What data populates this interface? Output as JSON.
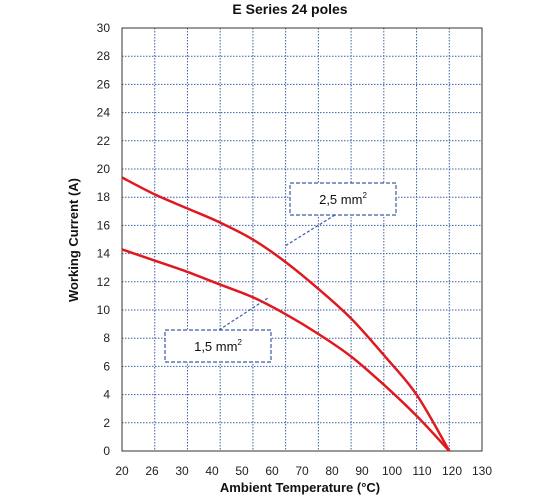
{
  "chart_data": {
    "type": "line",
    "title": "E Series 24 poles",
    "xlabel": "Ambient Temperature (°C)",
    "ylabel": "Working Current (A)",
    "xlim": [
      20,
      130
    ],
    "ylim": [
      0,
      30
    ],
    "x_ticks": [
      20,
      26,
      30,
      40,
      50,
      60,
      70,
      80,
      90,
      100,
      110,
      120,
      130
    ],
    "y_ticks": [
      0,
      2,
      4,
      6,
      8,
      10,
      12,
      14,
      16,
      18,
      20,
      22,
      24,
      26,
      28,
      30
    ],
    "grid": true,
    "line_color": "#e0191f",
    "grid_color": "#3a5fa8",
    "series": [
      {
        "name": "2,5 mm",
        "name_sup": "2",
        "x": [
          20,
          30,
          40,
          50,
          60,
          70,
          80,
          90,
          100,
          110,
          120
        ],
        "values": [
          19.4,
          18.2,
          17.2,
          16.2,
          15.0,
          13.4,
          11.5,
          9.4,
          6.8,
          4.0,
          0
        ]
      },
      {
        "name": "1,5 mm",
        "name_sup": "2",
        "x": [
          20,
          30,
          40,
          50,
          60,
          70,
          80,
          90,
          100,
          110,
          120
        ],
        "values": [
          14.3,
          13.5,
          12.7,
          11.8,
          10.9,
          9.7,
          8.3,
          6.7,
          4.7,
          2.5,
          0
        ]
      }
    ]
  }
}
